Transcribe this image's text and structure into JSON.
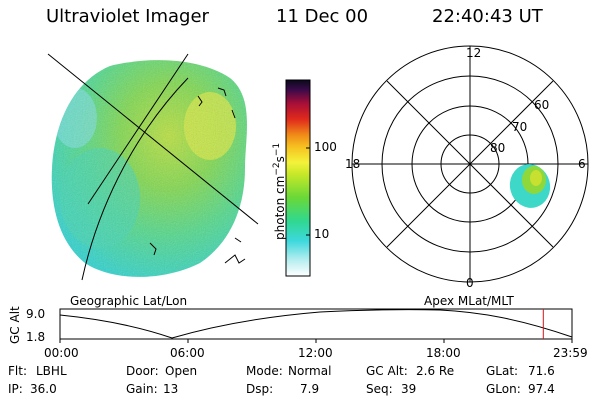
{
  "header": {
    "instrument": "Ultraviolet Imager",
    "date": "11 Dec 00",
    "time": "22:40:43 UT"
  },
  "colorbar": {
    "label": "photon cm⁻²s⁻¹",
    "label_base": "photon cm",
    "label_exp1": "−2",
    "label_mid": "s",
    "label_exp2": "−1",
    "ticks": [
      "100",
      "10"
    ],
    "stops": [
      "#e8e8e8",
      "#7fdde0",
      "#22d4d8",
      "#3fd96a",
      "#a8e22a",
      "#f0f230",
      "#f5c21e",
      "#f2881a",
      "#e83018",
      "#b01020",
      "#6a0a50",
      "#1a0a30"
    ]
  },
  "left_panel": {
    "label": "Geographic Lat/Lon"
  },
  "right_panel": {
    "label": "Apex MLat/MLT",
    "mlt_labels": [
      "12",
      "18",
      "6",
      "0"
    ],
    "lat_labels": [
      "60",
      "70",
      "80"
    ]
  },
  "altitude_plot": {
    "ylabel": "GC Alt",
    "ymax_label": "9.0",
    "ymin_label": "1.8",
    "x_ticks": [
      "00:00",
      "06:00",
      "12:00",
      "18:00",
      "23:59"
    ],
    "current_marker_fraction": 0.944
  },
  "info": {
    "filter_label": "Flt:",
    "filter_value": "LBHL",
    "ip_label": "IP:",
    "ip_value": "36.0",
    "door_label": "Door:",
    "door_value": "Open",
    "gain_label": "Gain:",
    "gain_value": "13",
    "mode_label": "Mode:",
    "mode_value": "Normal",
    "dsp_label": "Dsp:",
    "dsp_value": "7.9",
    "gcalt_label": "GC Alt:",
    "gcalt_value": "2.6 Re",
    "seq_label": "Seq:",
    "seq_value": "39",
    "glat_label": "GLat:",
    "glat_value": "71.6",
    "glon_label": "GLon:",
    "glon_value": "97.4"
  }
}
